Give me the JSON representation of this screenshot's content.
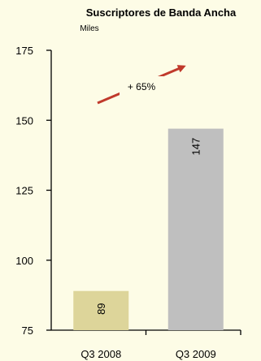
{
  "chart_data": {
    "type": "bar",
    "title": "Suscriptores de Banda Ancha",
    "subtitle": "Miles",
    "categories": [
      "Q3 2008",
      "Q3 2009"
    ],
    "values": [
      89,
      147
    ],
    "ylim": [
      75,
      175
    ],
    "yticks": [
      75,
      100,
      125,
      150,
      175
    ],
    "bar_colors": [
      "#ddd59a",
      "#bfbfbf"
    ],
    "annotation": {
      "text": "+ 65%",
      "arrow_color": "#c0392b"
    },
    "grid": false
  }
}
